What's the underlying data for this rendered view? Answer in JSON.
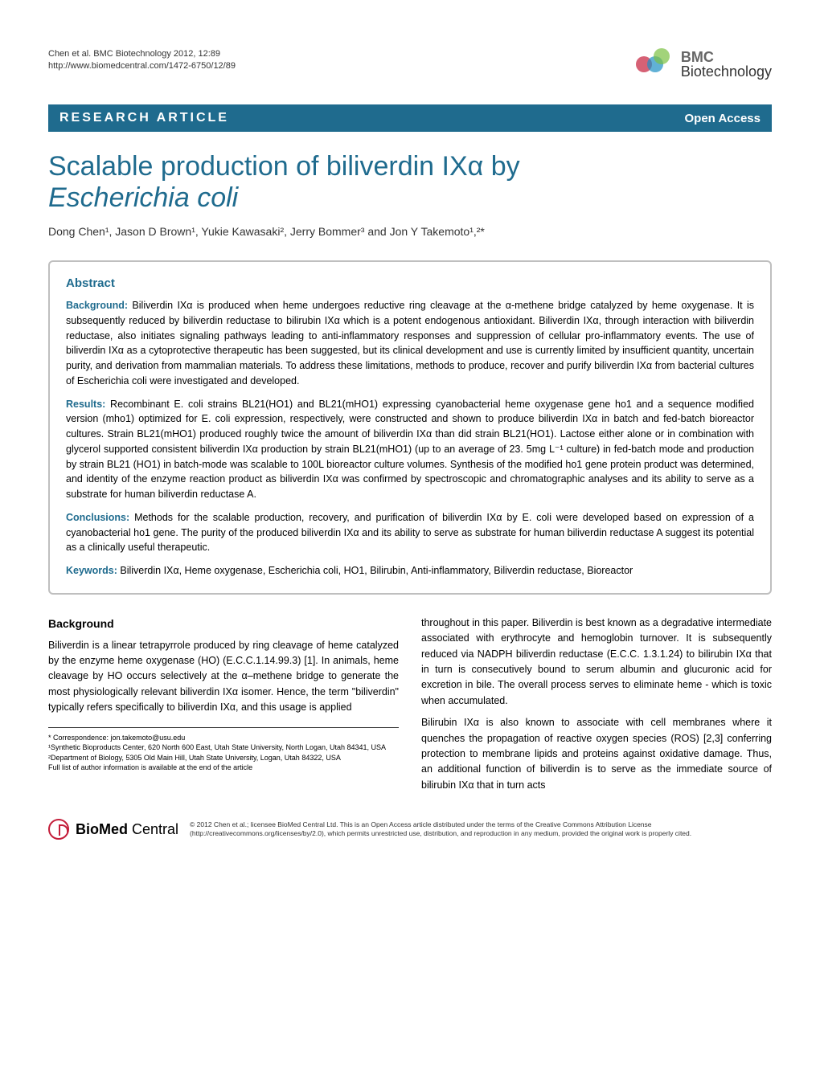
{
  "header": {
    "citation": "Chen et al. BMC Biotechnology 2012, 12:89",
    "url": "http://www.biomedcentral.com/1472-6750/12/89",
    "journal_prefix": "BMC",
    "journal_name": "Biotechnology"
  },
  "banner": {
    "left": "RESEARCH ARTICLE",
    "right": "Open Access"
  },
  "title_line1": "Scalable production of biliverdin IXα by",
  "title_line2": "Escherichia coli",
  "authors_html": "Dong Chen¹, Jason D Brown¹, Yukie Kawasaki², Jerry Bommer³ and Jon Y Takemoto¹,²*",
  "abstract": {
    "heading": "Abstract",
    "background_label": "Background:",
    "background": "Biliverdin IXα is produced when heme undergoes reductive ring cleavage at the α-methene bridge catalyzed by heme oxygenase. It is subsequently reduced by biliverdin reductase to bilirubin IXα which is a potent endogenous antioxidant. Biliverdin IXα, through interaction with biliverdin reductase, also initiates signaling pathways leading to anti-inflammatory responses and suppression of cellular pro-inflammatory events. The use of biliverdin IXα as a cytoprotective therapeutic has been suggested, but its clinical development and use is currently limited by insufficient quantity, uncertain purity, and derivation from mammalian materials. To address these limitations, methods to produce, recover and purify biliverdin IXα from bacterial cultures of Escherichia coli were investigated and developed.",
    "results_label": "Results:",
    "results": "Recombinant E. coli strains BL21(HO1) and BL21(mHO1) expressing cyanobacterial heme oxygenase gene ho1 and a sequence modified version (mho1) optimized for E. coli expression, respectively, were constructed and shown to produce biliverdin IXα in batch and fed-batch bioreactor cultures. Strain BL21(mHO1) produced roughly twice the amount of biliverdin IXα than did strain BL21(HO1). Lactose either alone or in combination with glycerol supported consistent biliverdin IXα production by strain BL21(mHO1) (up to an average of 23. 5mg L⁻¹ culture) in fed-batch mode and production by strain BL21 (HO1) in batch-mode was scalable to 100L bioreactor culture volumes. Synthesis of the modified ho1 gene protein product was determined, and identity of the enzyme reaction product as biliverdin IXα was confirmed by spectroscopic and chromatographic analyses and its ability to serve as a substrate for human biliverdin reductase A.",
    "conclusions_label": "Conclusions:",
    "conclusions": "Methods for the scalable production, recovery, and purification of biliverdin IXα by E. coli were developed based on expression of a cyanobacterial ho1 gene. The purity of the produced biliverdin IXα and its ability to serve as substrate for human biliverdin reductase A suggest its potential as a clinically useful therapeutic.",
    "keywords_label": "Keywords:",
    "keywords": "Biliverdin IXα, Heme oxygenase, Escherichia coli, HO1, Bilirubin, Anti-inflammatory, Biliverdin reductase, Bioreactor"
  },
  "body": {
    "heading": "Background",
    "col1_p1": "Biliverdin is a linear tetrapyrrole produced by ring cleavage of heme catalyzed by the enzyme heme oxygenase (HO) (E.C.C.1.14.99.3) [1]. In animals, heme cleavage by HO occurs selectively at the α–methene bridge to generate the most physiologically relevant biliverdin IXα isomer. Hence, the term \"biliverdin\" typically refers specifically to biliverdin IXα, and this usage is applied",
    "col2_p1": "throughout in this paper. Biliverdin is best known as a degradative intermediate associated with erythrocyte and hemoglobin turnover. It is subsequently reduced via NADPH biliverdin reductase (E.C.C. 1.3.1.24) to bilirubin IXα that in turn is consecutively bound to serum albumin and glucuronic acid for excretion in bile. The overall process serves to eliminate heme - which is toxic when accumulated.",
    "col2_p2": "Bilirubin IXα is also known to associate with cell membranes where it quenches the propagation of reactive oxygen species (ROS) [2,3] conferring protection to membrane lipids and proteins against oxidative damage. Thus, an additional function of biliverdin is to serve as the immediate source of bilirubin IXα that in turn acts"
  },
  "correspondence": {
    "line1": "* Correspondence: jon.takemoto@usu.edu",
    "line2": "¹Synthetic Bioproducts Center, 620 North 600 East, Utah State University, North Logan, Utah 84341, USA",
    "line3": "²Department of Biology, 5305 Old Main Hill, Utah State University, Logan, Utah 84322, USA",
    "line4": "Full list of author information is available at the end of the article"
  },
  "footer": {
    "logo_bold": "BioMed",
    "logo_rest": " Central",
    "license": "© 2012 Chen et al.; licensee BioMed Central Ltd. This is an Open Access article distributed under the terms of the Creative Commons Attribution License (http://creativecommons.org/licenses/by/2.0), which permits unrestricted use, distribution, and reproduction in any medium, provided the original work is properly cited."
  },
  "colors": {
    "brand_blue": "#1f6b8e",
    "border_gray": "#bfbfbf",
    "text_dark": "#333333"
  }
}
